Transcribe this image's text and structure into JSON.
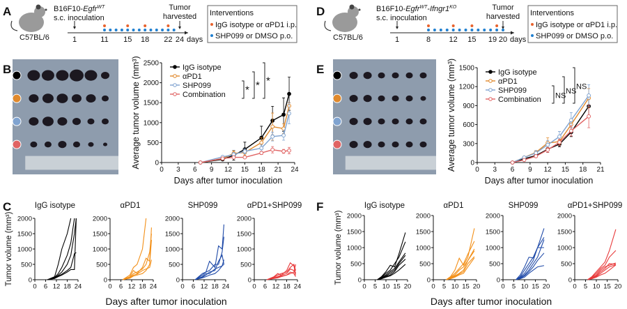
{
  "panel_labels": {
    "A": "A",
    "B": "B",
    "C": "C",
    "D": "D",
    "E": "E",
    "F": "F"
  },
  "schematics": [
    {
      "strain": "C57BL/6",
      "cell_line": "B16F10-",
      "gene": "Egfr",
      "sup": "WT",
      "gene2": "",
      "sup2": "",
      "inoculation": "s.c. inoculation",
      "harvest_1": "Tumor",
      "harvest_2": "harvested",
      "days": [
        1,
        11,
        15,
        18,
        22,
        24
      ],
      "days_suffix": "days",
      "ip_days": [
        11,
        15,
        18,
        22
      ],
      "po_days": [
        11,
        12,
        13,
        14,
        15,
        16,
        17,
        18,
        19,
        20,
        21,
        22,
        23
      ]
    },
    {
      "strain": "C57BL/6",
      "cell_line": "B16F10-",
      "gene": "Egfr",
      "sup": "WT",
      "gene2": "-Ifngr1",
      "sup2": "KO",
      "inoculation": "s.c. inoculation",
      "harvest_1": "Tumor",
      "harvest_2": "harvested",
      "days": [
        1,
        8,
        12,
        15,
        19,
        20
      ],
      "days_suffix": "days",
      "ip_days": [
        8,
        12,
        15,
        19
      ],
      "po_days": [
        8,
        9,
        10,
        11,
        12,
        13,
        14,
        15,
        16,
        17,
        18,
        19,
        20
      ]
    }
  ],
  "interventions": {
    "title": "Interventions",
    "ip": "IgG isotype or αPD1 i.p.",
    "po": "SHP099 or DMSO p.o.",
    "ip_color": "#e8622c",
    "po_color": "#1f7fd0"
  },
  "group_colors": {
    "IgG isotype": "#000000",
    "αPD1": "#e0892c",
    "SHP099": "#7fa3d0",
    "Combination": "#e06464"
  },
  "chart_data": [
    {
      "panel": "B",
      "type": "line",
      "ylabel": "Average tumor volume (mm³)",
      "xlabel": "Days after tumor inoculation",
      "xlim": [
        0,
        24
      ],
      "xticks": [
        0,
        3,
        6,
        9,
        12,
        15,
        18,
        21,
        24
      ],
      "ylim": [
        0,
        2500
      ],
      "yticks": [
        0,
        500,
        1000,
        1500,
        2000,
        2500
      ],
      "legend": "top-left",
      "significance": [
        "*",
        "*",
        "*"
      ],
      "x": [
        7,
        11,
        13,
        15,
        18,
        20,
        22,
        23
      ],
      "series": [
        {
          "name": "IgG isotype",
          "color": "#000000",
          "values": [
            0,
            80,
            180,
            330,
            620,
            1050,
            1200,
            1720
          ],
          "err": [
            0,
            30,
            120,
            180,
            290,
            360,
            420,
            420
          ]
        },
        {
          "name": "αPD1",
          "color": "#e0892c",
          "values": [
            0,
            100,
            230,
            250,
            500,
            900,
            850,
            1420
          ],
          "err": [
            0,
            30,
            60,
            70,
            120,
            340,
            120,
            80
          ]
        },
        {
          "name": "SHP099",
          "color": "#7fa3d0",
          "values": [
            0,
            140,
            200,
            280,
            360,
            650,
            680,
            1230
          ],
          "err": [
            0,
            20,
            50,
            60,
            80,
            110,
            120,
            260
          ]
        },
        {
          "name": "Combination",
          "color": "#e06464",
          "values": [
            0,
            100,
            130,
            130,
            240,
            320,
            280,
            300
          ],
          "err": [
            0,
            20,
            30,
            30,
            40,
            80,
            50,
            80
          ]
        }
      ]
    },
    {
      "panel": "E",
      "type": "line",
      "ylabel": "Average tumor volume (mm³)",
      "xlabel": "Days after tumor inoculation",
      "xlim": [
        0,
        21
      ],
      "xticks": [
        0,
        3,
        6,
        9,
        12,
        15,
        18,
        21
      ],
      "ylim": [
        0,
        1500
      ],
      "yticks": [
        0,
        300,
        600,
        900,
        1200,
        1500
      ],
      "legend": "top-left",
      "significance": [
        "NS",
        "NS",
        "NS"
      ],
      "x": [
        6,
        8,
        10,
        12,
        14,
        16,
        19
      ],
      "series": [
        {
          "name": "IgG isotype",
          "color": "#000000",
          "values": [
            0,
            60,
            110,
            210,
            290,
            480,
            890
          ],
          "err": [
            0,
            10,
            30,
            50,
            40,
            70,
            150
          ]
        },
        {
          "name": "αPD1",
          "color": "#e0892c",
          "values": [
            0,
            80,
            160,
            310,
            330,
            600,
            1020
          ],
          "err": [
            0,
            15,
            30,
            80,
            40,
            90,
            150
          ]
        },
        {
          "name": "SHP099",
          "color": "#7fa3d0",
          "values": [
            0,
            80,
            150,
            280,
            410,
            670,
            1060
          ],
          "err": [
            0,
            15,
            40,
            70,
            80,
            120,
            170
          ]
        },
        {
          "name": "Combination",
          "color": "#e06464",
          "values": [
            0,
            40,
            100,
            200,
            320,
            500,
            730
          ],
          "err": [
            0,
            10,
            20,
            40,
            50,
            80,
            180
          ]
        }
      ]
    },
    {
      "panel": "C",
      "type": "line",
      "ylabel": "Tumor volume (mm³)",
      "xlabel": "Days after tumor inoculation",
      "xlim": [
        0,
        24
      ],
      "xticks": [
        0,
        6,
        12,
        18,
        24
      ],
      "ylim": [
        0,
        2000
      ],
      "yticks": [
        0,
        500,
        1000,
        1500,
        2000
      ],
      "x": [
        7,
        11,
        13,
        15,
        18,
        20,
        22,
        23
      ],
      "groups": [
        {
          "title": "IgG isotype",
          "color": "#000000",
          "curves": [
            [
              0,
              100,
              500,
              1000,
              1500,
              2000,
              null,
              null
            ],
            [
              0,
              80,
              200,
              400,
              800,
              1200,
              2000,
              null
            ],
            [
              0,
              60,
              150,
              250,
              500,
              800,
              1500,
              2000
            ],
            [
              0,
              50,
              120,
              180,
              300,
              400,
              850,
              880
            ],
            [
              0,
              40,
              100,
              150,
              250,
              330,
              330,
              2000
            ]
          ]
        },
        {
          "title": "αPD1",
          "color": "#f39019",
          "curves": [
            [
              0,
              150,
              400,
              500,
              1000,
              2000,
              null,
              null
            ],
            [
              0,
              100,
              300,
              200,
              400,
              700,
              600,
              1700
            ],
            [
              0,
              80,
              200,
              250,
              350,
              500,
              900,
              1500
            ],
            [
              0,
              60,
              150,
              180,
              300,
              350,
              400,
              650
            ],
            [
              0,
              50,
              120,
              150,
              200,
              300,
              500,
              1300
            ]
          ]
        },
        {
          "title": "SHP099",
          "color": "#1f4aa8",
          "curves": [
            [
              0,
              200,
              250,
              600,
              400,
              1100,
              1000,
              1800
            ],
            [
              0,
              150,
              250,
              300,
              500,
              500,
              900,
              1400
            ],
            [
              0,
              100,
              200,
              200,
              350,
              400,
              450,
              650
            ],
            [
              0,
              80,
              150,
              250,
              300,
              600,
              800,
              500
            ],
            [
              0,
              60,
              100,
              150,
              200,
              300,
              450,
              500
            ]
          ]
        },
        {
          "title": "αPD1+SHP099",
          "color": "#e8393a",
          "curves": [
            [
              0,
              100,
              200,
              150,
              300,
              550,
              450,
              200
            ],
            [
              0,
              80,
              150,
              200,
              250,
              400,
              500,
              300
            ],
            [
              0,
              60,
              100,
              150,
              200,
              350,
              300,
              150
            ],
            [
              0,
              50,
              80,
              120,
              150,
              250,
              200,
              100
            ],
            [
              0,
              40,
              60,
              100,
              150,
              200,
              250,
              500
            ]
          ]
        }
      ]
    },
    {
      "panel": "F",
      "type": "line",
      "ylabel": "Tumor volume (mm³)",
      "xlabel": "Days after tumor inoculation",
      "xlim": [
        0,
        20
      ],
      "xticks": [
        0,
        5,
        10,
        15,
        20
      ],
      "ylim": [
        0,
        2000
      ],
      "yticks": [
        0,
        500,
        1000,
        1500,
        2000
      ],
      "x": [
        6,
        8,
        10,
        12,
        14,
        16,
        19
      ],
      "groups": [
        {
          "title": "IgG isotype",
          "color": "#000000",
          "curves": [
            [
              0,
              100,
              250,
              450,
              400,
              800,
              1470
            ],
            [
              0,
              80,
              200,
              300,
              500,
              700,
              1180
            ],
            [
              0,
              60,
              150,
              250,
              350,
              550,
              830
            ],
            [
              0,
              50,
              120,
              200,
              300,
              500,
              760
            ],
            [
              0,
              40,
              100,
              150,
              250,
              450,
              640
            ],
            [
              0,
              30,
              80,
              120,
              200,
              300,
              480
            ]
          ]
        },
        {
          "title": "αPD1",
          "color": "#f39019",
          "curves": [
            [
              0,
              100,
              300,
              670,
              450,
              700,
              1600
            ],
            [
              0,
              80,
              200,
              350,
              500,
              800,
              1200
            ],
            [
              0,
              60,
              150,
              300,
              400,
              600,
              960
            ],
            [
              0,
              50,
              120,
              200,
              300,
              600,
              900
            ],
            [
              0,
              40,
              100,
              180,
              250,
              500,
              720
            ],
            [
              0,
              30,
              80,
              150,
              200,
              400,
              680
            ]
          ]
        },
        {
          "title": "SHP099",
          "color": "#1f4aa8",
          "curves": [
            [
              0,
              150,
              400,
              700,
              680,
              1000,
              1600
            ],
            [
              0,
              100,
              300,
              500,
              700,
              1000,
              1320
            ],
            [
              0,
              80,
              200,
              400,
              600,
              1000,
              1000
            ],
            [
              0,
              60,
              150,
              300,
              500,
              700,
              1250
            ],
            [
              0,
              40,
              120,
              250,
              400,
              600,
              830
            ],
            [
              0,
              30,
              80,
              200,
              300,
              400,
              440
            ]
          ]
        },
        {
          "title": "αPD1+SHP099",
          "color": "#e8393a",
          "curves": [
            [
              0,
              100,
              250,
              400,
              550,
              900,
              1570
            ],
            [
              0,
              80,
              200,
              350,
              450,
              700,
              910
            ],
            [
              0,
              60,
              150,
              300,
              400,
              450,
              520
            ],
            [
              0,
              50,
              120,
              250,
              350,
              500,
              480
            ],
            [
              0,
              40,
              100,
              200,
              300,
              400,
              470
            ],
            [
              0,
              30,
              80,
              150,
              200,
              300,
              460
            ]
          ]
        }
      ]
    }
  ]
}
